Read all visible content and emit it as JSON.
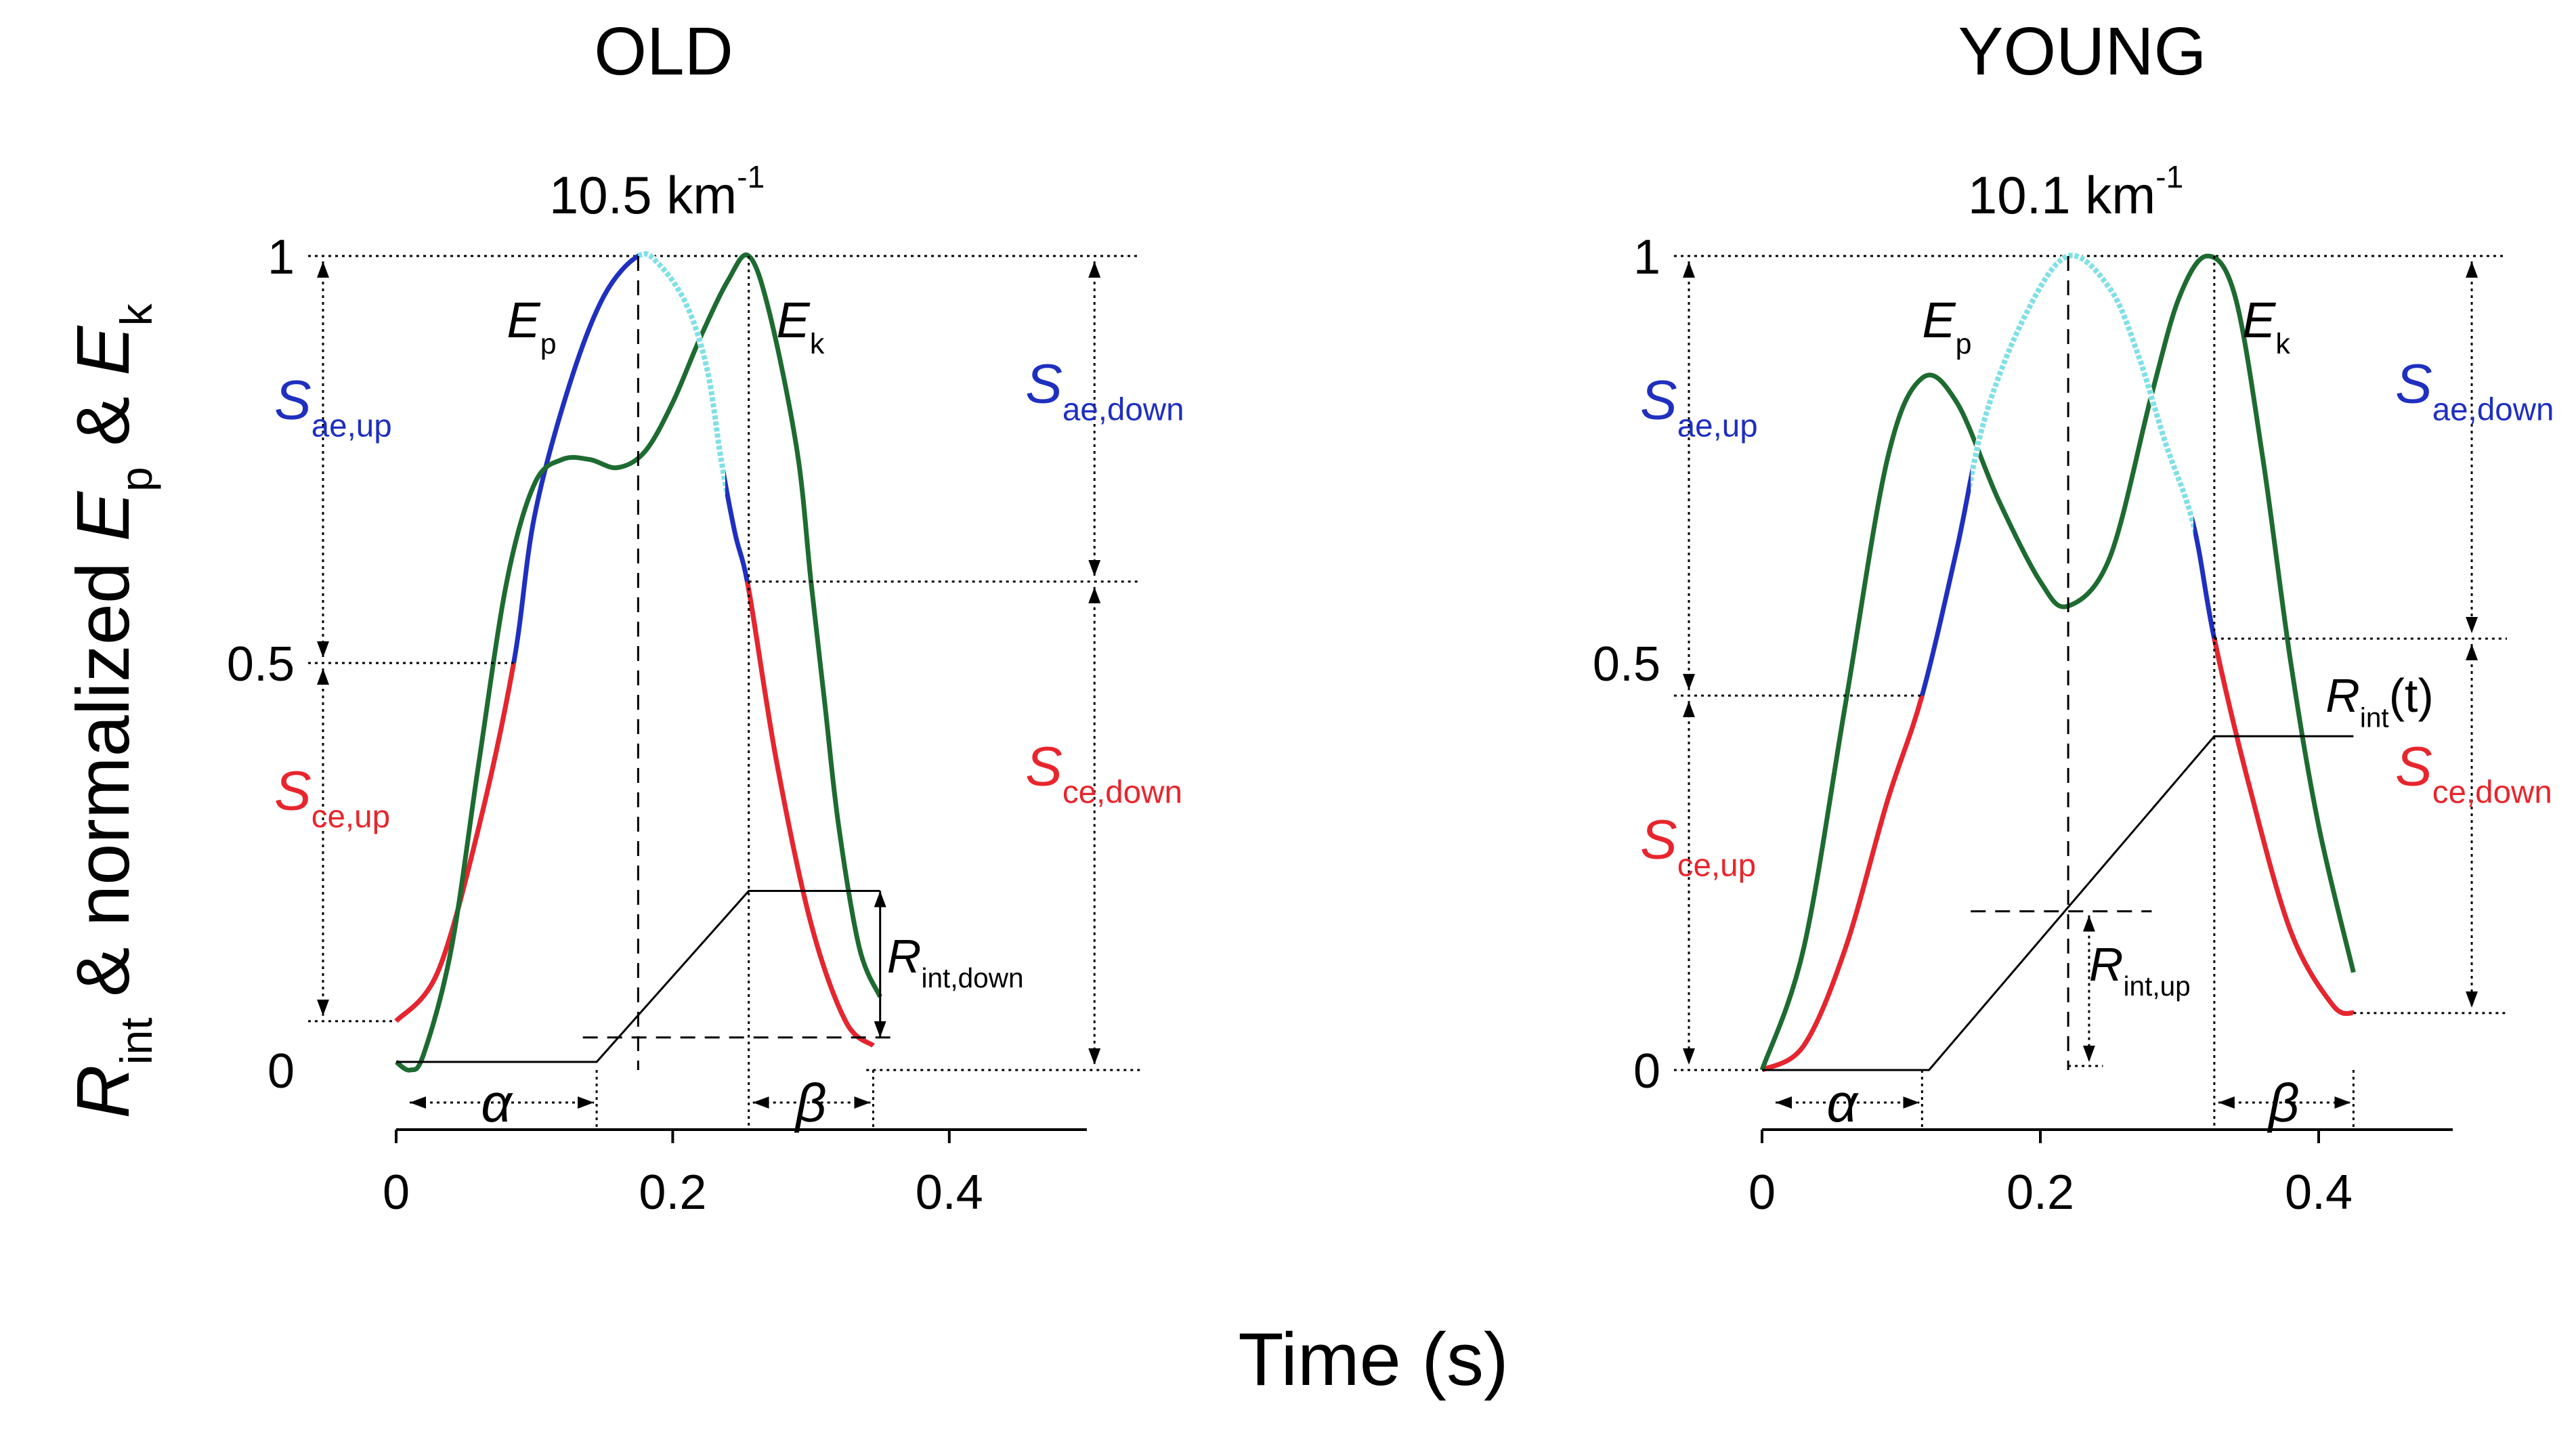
{
  "figure": {
    "xlabel": "Time (s)",
    "ylabel_parts": [
      "R",
      "int",
      " & normalized ",
      "E",
      "p",
      " & ",
      "E",
      "k"
    ]
  },
  "colors": {
    "ep_rising": "#1f2fbf",
    "ep_top": "#7fe0e6",
    "ep_low": "#e8252c",
    "ek": "#1d6b30",
    "rint": "#000000",
    "sae_label": "#1f2fbf",
    "sce_label": "#e8252c"
  },
  "chart_data": [
    {
      "type": "line",
      "title": "OLD",
      "subtitle": "10.5 km",
      "subtitle_sup": "-1",
      "xlim": [
        0,
        0.5
      ],
      "ylim": [
        0,
        1
      ],
      "xticks": [
        "0",
        "0.2",
        "0.4"
      ],
      "yticks": [
        "0",
        "0.5",
        "1"
      ],
      "series": [
        {
          "name": "Ep",
          "x": [
            0.0,
            0.03,
            0.06,
            0.085,
            0.1,
            0.125,
            0.15,
            0.175,
            0.19,
            0.21,
            0.225,
            0.235,
            0.245,
            0.255,
            0.275,
            0.3,
            0.325,
            0.345
          ],
          "y": [
            0.06,
            0.12,
            0.3,
            0.5,
            0.68,
            0.84,
            0.95,
            1.0,
            0.99,
            0.94,
            0.86,
            0.75,
            0.66,
            0.59,
            0.38,
            0.18,
            0.06,
            0.03
          ]
        },
        {
          "name": "Ek",
          "x": [
            0.0,
            0.01,
            0.02,
            0.04,
            0.06,
            0.08,
            0.1,
            0.12,
            0.14,
            0.16,
            0.18,
            0.2,
            0.22,
            0.24,
            0.255,
            0.27,
            0.29,
            0.3,
            0.31,
            0.32,
            0.335,
            0.35
          ],
          "y": [
            0.01,
            0.0,
            0.02,
            0.15,
            0.38,
            0.6,
            0.72,
            0.75,
            0.75,
            0.74,
            0.76,
            0.82,
            0.9,
            0.97,
            1.0,
            0.93,
            0.76,
            0.6,
            0.45,
            0.3,
            0.15,
            0.09
          ]
        },
        {
          "name": "Rint",
          "x": [
            0.0,
            0.145,
            0.255,
            0.35
          ],
          "y": [
            0.01,
            0.01,
            0.22,
            0.22
          ]
        }
      ],
      "labels": {
        "ep": [
          "E",
          "p"
        ],
        "ek": [
          "E",
          "k"
        ],
        "sae_up": [
          "S",
          "ae,up"
        ],
        "sce_up": [
          "S",
          "ce,up"
        ],
        "sae_down": [
          "S",
          "ae,down"
        ],
        "sce_down": [
          "S",
          "ce,down"
        ],
        "rint": [
          "R",
          "int,down"
        ],
        "alpha": "α",
        "beta": "β"
      }
    },
    {
      "type": "line",
      "title": "YOUNG",
      "subtitle": "10.1 km",
      "subtitle_sup": "-1",
      "xlim": [
        0,
        0.5
      ],
      "ylim": [
        0,
        1
      ],
      "xticks": [
        "0",
        "0.2",
        "0.4"
      ],
      "yticks": [
        "0",
        "0.5",
        "1"
      ],
      "series": [
        {
          "name": "Ep",
          "x": [
            0.0,
            0.03,
            0.06,
            0.09,
            0.115,
            0.14,
            0.16,
            0.19,
            0.22,
            0.25,
            0.27,
            0.29,
            0.31,
            0.325,
            0.35,
            0.38,
            0.41,
            0.425
          ],
          "y": [
            0.0,
            0.03,
            0.15,
            0.33,
            0.46,
            0.64,
            0.8,
            0.93,
            1.0,
            0.96,
            0.88,
            0.77,
            0.67,
            0.53,
            0.35,
            0.17,
            0.08,
            0.07
          ]
        },
        {
          "name": "Ek",
          "x": [
            0.0,
            0.03,
            0.06,
            0.09,
            0.115,
            0.14,
            0.17,
            0.2,
            0.22,
            0.25,
            0.28,
            0.3,
            0.32,
            0.34,
            0.36,
            0.38,
            0.4,
            0.425
          ],
          "y": [
            0.0,
            0.15,
            0.45,
            0.75,
            0.85,
            0.82,
            0.7,
            0.6,
            0.57,
            0.63,
            0.83,
            0.95,
            1.0,
            0.95,
            0.75,
            0.5,
            0.3,
            0.12
          ]
        },
        {
          "name": "Rint",
          "x": [
            0.0,
            0.12,
            0.325,
            0.425
          ],
          "y": [
            0.0,
            0.0,
            0.41,
            0.41
          ]
        }
      ],
      "labels": {
        "ep": [
          "E",
          "p"
        ],
        "ek": [
          "E",
          "k"
        ],
        "sae_up": [
          "S",
          "ae,up"
        ],
        "sce_up": [
          "S",
          "ce,up"
        ],
        "sae_down": [
          "S",
          "ae,down"
        ],
        "sce_down": [
          "S",
          "ce,down"
        ],
        "rint": [
          "R",
          "int,up"
        ],
        "rint_t": [
          "R",
          "int",
          "(t)"
        ],
        "alpha": "α",
        "beta": "β"
      }
    }
  ]
}
